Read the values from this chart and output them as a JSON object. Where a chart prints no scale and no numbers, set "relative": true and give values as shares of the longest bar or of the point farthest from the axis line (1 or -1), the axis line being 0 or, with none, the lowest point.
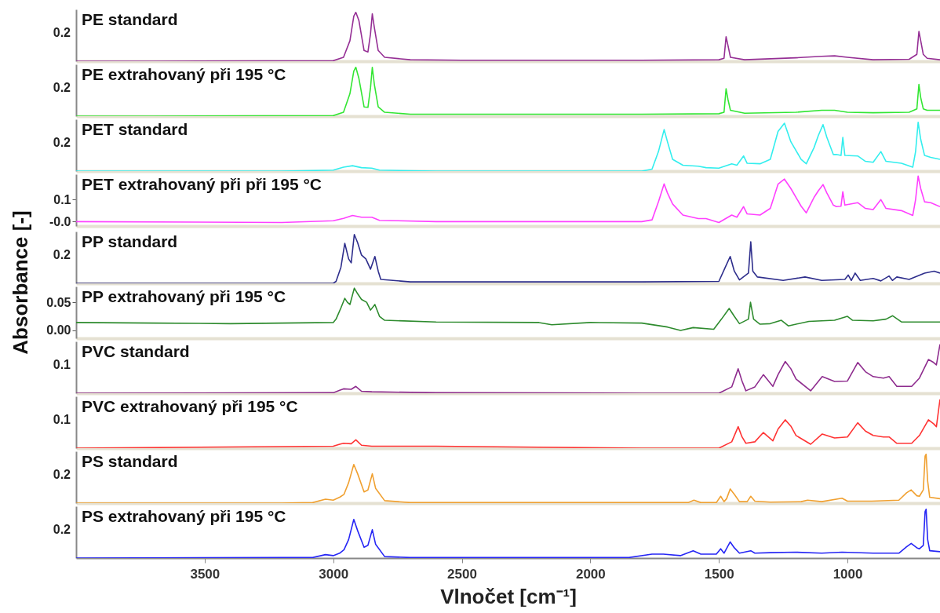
{
  "chart_data": [
    {
      "type": "line",
      "relative": true,
      "xlim": [
        4000,
        640
      ],
      "tick_labels": false,
      "annotations": [
        "0.2"
      ],
      "series": [
        {
          "name": "PE standard",
          "color": "#952f95",
          "x": [
            4000,
            3700,
            3000,
            2960,
            2935,
            2920,
            2912,
            2900,
            2880,
            2865,
            2855,
            2848,
            2840,
            2825,
            2800,
            2700,
            2500,
            1800,
            1500,
            1480,
            1472,
            1465,
            1455,
            1400,
            1200,
            1100,
            1050,
            1000,
            900,
            760,
            730,
            722,
            715,
            705,
            690,
            640
          ],
          "values": [
            0,
            0,
            0.01,
            0.08,
            0.42,
            0.92,
            1,
            0.83,
            0.22,
            0.19,
            0.56,
            0.97,
            0.69,
            0.22,
            0.08,
            0.03,
            0.02,
            0.02,
            0.03,
            0.06,
            0.5,
            0.33,
            0.08,
            0.03,
            0.07,
            0.1,
            0.11,
            0.08,
            0.03,
            0.04,
            0.14,
            0.61,
            0.42,
            0.14,
            0.06,
            0.03
          ]
        }
      ]
    },
    {
      "type": "line",
      "relative": true,
      "xlim": [
        4000,
        640
      ],
      "tick_labels": false,
      "annotations": [
        "0.2"
      ],
      "series": [
        {
          "name": "PE extrahovaný při 195 °C",
          "color": "#33e633",
          "x": [
            4000,
            3700,
            3000,
            2960,
            2935,
            2920,
            2912,
            2900,
            2880,
            2865,
            2855,
            2848,
            2840,
            2825,
            2800,
            2700,
            2500,
            1800,
            1500,
            1480,
            1472,
            1465,
            1455,
            1400,
            1200,
            1100,
            1050,
            1000,
            900,
            760,
            730,
            722,
            715,
            705,
            690,
            640
          ],
          "values": [
            0,
            0,
            0.01,
            0.08,
            0.46,
            0.92,
            1,
            0.77,
            0.19,
            0.18,
            0.58,
            1,
            0.65,
            0.19,
            0.08,
            0.04,
            0.04,
            0.04,
            0.05,
            0.08,
            0.56,
            0.35,
            0.12,
            0.06,
            0.08,
            0.12,
            0.12,
            0.08,
            0.07,
            0.08,
            0.15,
            0.65,
            0.38,
            0.15,
            0.12,
            0.12
          ]
        }
      ]
    },
    {
      "type": "line",
      "relative": true,
      "xlim": [
        4000,
        640
      ],
      "tick_labels": false,
      "annotations": [
        "0.2"
      ],
      "series": [
        {
          "name": "PET standard",
          "color": "#33eeee",
          "x": [
            4000,
            3200,
            3000,
            2960,
            2925,
            2890,
            2850,
            2820,
            2600,
            1800,
            1760,
            1735,
            1713,
            1700,
            1680,
            1640,
            1580,
            1550,
            1500,
            1450,
            1430,
            1404,
            1390,
            1340,
            1300,
            1270,
            1245,
            1220,
            1180,
            1160,
            1130,
            1113,
            1095,
            1080,
            1055,
            1043,
            1025,
            1018,
            1010,
            960,
            930,
            900,
            870,
            850,
            790,
            746,
            735,
            725,
            715,
            700,
            676,
            640
          ],
          "values": [
            0,
            0,
            0.02,
            0.08,
            0.11,
            0.07,
            0.06,
            0.02,
            0,
            0,
            0.04,
            0.4,
            0.85,
            0.6,
            0.24,
            0.12,
            0.1,
            0.07,
            0.06,
            0.15,
            0.12,
            0.31,
            0.16,
            0.15,
            0.24,
            0.81,
            0.98,
            0.6,
            0.24,
            0.15,
            0.48,
            0.73,
            0.95,
            0.69,
            0.34,
            0.34,
            0.32,
            0.69,
            0.32,
            0.31,
            0.2,
            0.18,
            0.4,
            0.2,
            0.16,
            0.08,
            0.4,
            1,
            0.65,
            0.32,
            0.28,
            0.24
          ]
        }
      ]
    },
    {
      "type": "line",
      "xlim": [
        4000,
        640
      ],
      "ylim": [
        -0.02,
        0.215
      ],
      "yticks": [
        {
          "value": 0,
          "label": "-0.0"
        },
        0.1
      ],
      "tick_labels": "y",
      "series": [
        {
          "name": "PET extrahovaný při při 195 °C",
          "color": "#ff40ff",
          "x": [
            4000,
            3200,
            3000,
            2960,
            2925,
            2890,
            2850,
            2820,
            2600,
            1800,
            1760,
            1735,
            1713,
            1700,
            1680,
            1640,
            1580,
            1550,
            1500,
            1450,
            1430,
            1404,
            1390,
            1340,
            1300,
            1270,
            1245,
            1220,
            1180,
            1160,
            1130,
            1113,
            1095,
            1080,
            1055,
            1043,
            1025,
            1018,
            1010,
            960,
            930,
            900,
            870,
            850,
            790,
            746,
            735,
            725,
            715,
            700,
            676,
            640
          ],
          "values": [
            0,
            -0.004,
            0.004,
            0.015,
            0.028,
            0.02,
            0.02,
            0.006,
            0,
            0,
            0.008,
            0.09,
            0.171,
            0.13,
            0.08,
            0.03,
            0.014,
            0.014,
            -0.004,
            0.03,
            0.02,
            0.068,
            0.035,
            0.03,
            0.06,
            0.17,
            0.193,
            0.15,
            0.07,
            0.04,
            0.11,
            0.14,
            0.168,
            0.13,
            0.075,
            0.068,
            0.07,
            0.136,
            0.075,
            0.086,
            0.06,
            0.055,
            0.1,
            0.06,
            0.05,
            0.028,
            0.1,
            0.207,
            0.15,
            0.09,
            0.086,
            0.068
          ]
        }
      ]
    },
    {
      "type": "line",
      "relative": true,
      "xlim": [
        4000,
        640
      ],
      "tick_labels": false,
      "annotations": [
        "0.2"
      ],
      "ylabel": "Absorbance [-]",
      "series": [
        {
          "name": "PP standard",
          "color": "#2e2e8c",
          "x": [
            4000,
            3000,
            2989,
            2970,
            2955,
            2940,
            2930,
            2918,
            2905,
            2890,
            2873,
            2855,
            2838,
            2825,
            2815,
            2700,
            1800,
            1500,
            1475,
            1456,
            1440,
            1420,
            1385,
            1376,
            1368,
            1350,
            1250,
            1165,
            1100,
            1010,
            997,
            985,
            970,
            950,
            900,
            870,
            838,
            825,
            808,
            760,
            700,
            663,
            640
          ],
          "values": [
            0,
            0,
            0.04,
            0.33,
            0.82,
            0.5,
            0.42,
            1,
            0.83,
            0.58,
            0.5,
            0.29,
            0.55,
            0.25,
            0.08,
            0.03,
            0.03,
            0.04,
            0.33,
            0.55,
            0.25,
            0.07,
            0.21,
            0.85,
            0.25,
            0.13,
            0.06,
            0.13,
            0.06,
            0.08,
            0.17,
            0.06,
            0.21,
            0.06,
            0.1,
            0.05,
            0.15,
            0.06,
            0.13,
            0.08,
            0.21,
            0.25,
            0.21
          ]
        }
      ]
    },
    {
      "type": "line",
      "xlim": [
        4000,
        640
      ],
      "ylim": [
        -0.014,
        0.078
      ],
      "yticks": [
        {
          "value": 0,
          "label": "0.00"
        },
        0.05
      ],
      "tick_labels": "y",
      "series": [
        {
          "name": "PP extrahovaný při 195 °C",
          "color": "#2e8b2e",
          "x": [
            4000,
            3700,
            3400,
            3000,
            2989,
            2970,
            2955,
            2945,
            2935,
            2918,
            2905,
            2890,
            2870,
            2855,
            2838,
            2820,
            2800,
            2600,
            2200,
            2150,
            2000,
            1800,
            1700,
            1649,
            1600,
            1520,
            1490,
            1460,
            1440,
            1420,
            1385,
            1377,
            1365,
            1340,
            1300,
            1257,
            1230,
            1150,
            1050,
            1000,
            980,
            900,
            850,
            824,
            790,
            700,
            640
          ],
          "values": [
            0.014,
            0.013,
            0.012,
            0.014,
            0.02,
            0.04,
            0.057,
            0.05,
            0.046,
            0.075,
            0.065,
            0.055,
            0.05,
            0.036,
            0.046,
            0.025,
            0.018,
            0.015,
            0.014,
            0.01,
            0.014,
            0.013,
            0.006,
            0,
            0.005,
            0.002,
            0.02,
            0.039,
            0.025,
            0.012,
            0.02,
            0.05,
            0.02,
            0.011,
            0.012,
            0.018,
            0.008,
            0.016,
            0.018,
            0.025,
            0.018,
            0.017,
            0.02,
            0.026,
            0.015,
            0.015,
            0.015
          ]
        }
      ]
    },
    {
      "type": "line",
      "relative": true,
      "xlim": [
        4000,
        640
      ],
      "tick_labels": false,
      "annotations": [
        "0.1"
      ],
      "series": [
        {
          "name": "PVC standard",
          "color": "#8e2c8e",
          "x": [
            4000,
            3000,
            2975,
            2960,
            2930,
            2912,
            2890,
            2850,
            2600,
            1800,
            1500,
            1450,
            1425,
            1410,
            1395,
            1360,
            1327,
            1290,
            1270,
            1242,
            1220,
            1200,
            1143,
            1098,
            1050,
            1000,
            960,
            930,
            900,
            860,
            838,
            808,
            750,
            720,
            685,
            665,
            654,
            640
          ],
          "values": [
            0,
            0.01,
            0.06,
            0.09,
            0.08,
            0.14,
            0.04,
            0.03,
            0.01,
            0,
            0,
            0.13,
            0.5,
            0.25,
            0.05,
            0.13,
            0.38,
            0.14,
            0.38,
            0.65,
            0.5,
            0.29,
            0.05,
            0.34,
            0.24,
            0.25,
            0.63,
            0.44,
            0.34,
            0.31,
            0.34,
            0.14,
            0.14,
            0.31,
            0.69,
            0.63,
            0.58,
            1
          ]
        }
      ]
    },
    {
      "type": "line",
      "relative": true,
      "xlim": [
        4000,
        640
      ],
      "tick_labels": false,
      "annotations": [
        "0.1"
      ],
      "series": [
        {
          "name": "PVC extrahovaný při 195 °C",
          "color": "#ff3333",
          "x": [
            4000,
            3000,
            2975,
            2960,
            2930,
            2912,
            2890,
            2850,
            2600,
            1800,
            1500,
            1450,
            1425,
            1410,
            1395,
            1360,
            1327,
            1290,
            1270,
            1242,
            1220,
            1200,
            1143,
            1098,
            1050,
            1000,
            960,
            930,
            900,
            860,
            838,
            808,
            750,
            720,
            685,
            665,
            654,
            640
          ],
          "values": [
            0,
            0.04,
            0.08,
            0.1,
            0.09,
            0.17,
            0.06,
            0.04,
            0.04,
            0,
            0,
            0.13,
            0.44,
            0.23,
            0.1,
            0.13,
            0.32,
            0.15,
            0.39,
            0.58,
            0.45,
            0.26,
            0.08,
            0.29,
            0.21,
            0.23,
            0.52,
            0.35,
            0.26,
            0.23,
            0.23,
            0.1,
            0.1,
            0.26,
            0.58,
            0.5,
            0.44,
            1
          ]
        }
      ]
    },
    {
      "type": "line",
      "relative": true,
      "xlim": [
        4000,
        640
      ],
      "tick_labels": false,
      "annotations": [
        "0.2"
      ],
      "series": [
        {
          "name": "PS standard",
          "color": "#f0a030",
          "x": [
            4000,
            3200,
            3080,
            3030,
            3000,
            2975,
            2958,
            2940,
            2920,
            2905,
            2880,
            2865,
            2848,
            2835,
            2800,
            2700,
            2000,
            1800,
            1620,
            1597,
            1570,
            1510,
            1493,
            1480,
            1470,
            1456,
            1440,
            1420,
            1390,
            1376,
            1360,
            1300,
            1180,
            1155,
            1100,
            1021,
            1000,
            906,
            800,
            770,
            752,
            730,
            720,
            705,
            698,
            694,
            688,
            680,
            640
          ],
          "values": [
            0,
            0,
            0.01,
            0.08,
            0.06,
            0.12,
            0.18,
            0.42,
            0.79,
            0.6,
            0.23,
            0.27,
            0.6,
            0.3,
            0.05,
            0.01,
            0.01,
            0.01,
            0.01,
            0.06,
            0.01,
            0.01,
            0.14,
            0.03,
            0.09,
            0.29,
            0.18,
            0.03,
            0.03,
            0.14,
            0.04,
            0.02,
            0.03,
            0.06,
            0.03,
            0.1,
            0.04,
            0.04,
            0.06,
            0.21,
            0.27,
            0.15,
            0.14,
            0.27,
            0.96,
            1,
            0.45,
            0.12,
            0.09
          ]
        }
      ]
    },
    {
      "type": "line",
      "relative": true,
      "xlim": [
        4000,
        640
      ],
      "xticks": [
        3500,
        3000,
        2500,
        2000,
        1500,
        1000
      ],
      "tick_labels": "x",
      "annotations": [
        "0.2"
      ],
      "xlabel": "Vlnočet [cm⁻¹]",
      "series": [
        {
          "name": "PS extrahovaný při 195 °C",
          "color": "#2626f5",
          "x": [
            4000,
            3200,
            3080,
            3030,
            3000,
            2975,
            2958,
            2940,
            2920,
            2905,
            2880,
            2865,
            2848,
            2835,
            2800,
            2700,
            2000,
            1850,
            1760,
            1716,
            1650,
            1600,
            1570,
            1510,
            1493,
            1480,
            1456,
            1440,
            1420,
            1376,
            1360,
            1300,
            1200,
            1100,
            1021,
            900,
            800,
            770,
            752,
            730,
            720,
            705,
            698,
            694,
            688,
            680,
            640
          ],
          "values": [
            0,
            0.01,
            0.01,
            0.07,
            0.05,
            0.1,
            0.17,
            0.38,
            0.79,
            0.56,
            0.22,
            0.26,
            0.58,
            0.28,
            0.03,
            0.01,
            0.01,
            0.01,
            0.08,
            0.08,
            0.05,
            0.15,
            0.08,
            0.08,
            0.19,
            0.1,
            0.33,
            0.21,
            0.1,
            0.15,
            0.1,
            0.11,
            0.12,
            0.1,
            0.12,
            0.1,
            0.1,
            0.23,
            0.3,
            0.21,
            0.19,
            0.26,
            0.95,
            1,
            0.38,
            0.15,
            0.13
          ]
        }
      ]
    }
  ]
}
